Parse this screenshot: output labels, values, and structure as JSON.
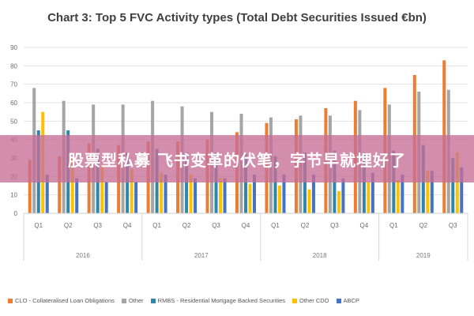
{
  "chart_data": {
    "type": "bar",
    "title": "Chart 3: Top 5 FVC Activity types (Total Debt Securities Issued €bn)",
    "categories": [
      "Q1",
      "Q2",
      "Q3",
      "Q4",
      "Q1",
      "Q2",
      "Q3",
      "Q4",
      "Q1",
      "Q2",
      "Q3",
      "Q4",
      "Q1",
      "Q2",
      "Q3"
    ],
    "year_groups": [
      {
        "label": "2016",
        "count": 4
      },
      {
        "label": "2017",
        "count": 4
      },
      {
        "label": "2018",
        "count": 4
      },
      {
        "label": "2019",
        "count": 3
      }
    ],
    "ylim": [
      0,
      90
    ],
    "yticks": [
      0,
      10,
      20,
      30,
      40,
      50,
      60,
      70,
      80,
      90
    ],
    "grid": true,
    "legend_position": "bottom",
    "series": [
      {
        "name": "CLO - Collateralised Loan Obligations",
        "color": "#ed7d31",
        "values": [
          29,
          31,
          38,
          37,
          39,
          39,
          40,
          44,
          49,
          51,
          57,
          61,
          68,
          75,
          83
        ]
      },
      {
        "name": "Other",
        "color": "#a5a5a5",
        "values": [
          68,
          61,
          59,
          59,
          61,
          58,
          55,
          54,
          52,
          53,
          53,
          56,
          59,
          66,
          67
        ]
      },
      {
        "name": "RMBS - Residential Mortgage Backed Securities",
        "color": "#2e86ab",
        "values": [
          45,
          45,
          35,
          33,
          35,
          33,
          33,
          32,
          31,
          33,
          34,
          33,
          34,
          37,
          30
        ]
      },
      {
        "name": "Other CDO",
        "color": "#ffc000",
        "values": [
          55,
          31,
          26,
          24,
          22,
          21,
          19,
          16,
          15,
          13,
          12,
          17,
          18,
          23,
          33
        ]
      },
      {
        "name": "ABCP",
        "color": "#4472c4",
        "values": [
          21,
          19,
          17,
          17,
          21,
          19,
          19,
          21,
          21,
          21,
          19,
          22,
          21,
          23,
          25
        ]
      }
    ]
  },
  "overlay": {
    "text": "股票型私募 飞书变革的伏笔，字节早就埋好了"
  }
}
